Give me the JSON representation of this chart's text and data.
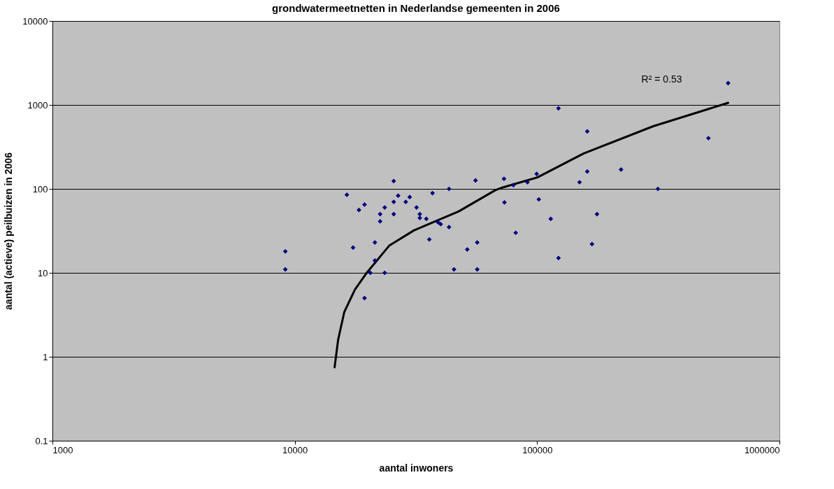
{
  "chart_data": {
    "type": "scatter",
    "title": "grondwatermeetnetten in Nederlandse gemeenten in 2006",
    "xlabel": "aantal inwoners",
    "ylabel": "aantal (actieve) peilbuizen in 2006",
    "log": "xy",
    "grid": "y",
    "legend": false,
    "xlim": [
      1000,
      1000000
    ],
    "xticks": [
      1000,
      10000,
      100000,
      1000000
    ],
    "ylim": [
      0.1,
      10000
    ],
    "yticks": [
      0.1,
      1,
      10,
      100,
      1000,
      10000
    ],
    "series": [
      {
        "color": "#000080",
        "marker": "diamond",
        "x": [
          9140,
          9140,
          16400,
          17400,
          18400,
          19400,
          19400,
          20500,
          21400,
          21400,
          22500,
          22500,
          23500,
          23500,
          25600,
          25600,
          25600,
          26700,
          28700,
          29800,
          31800,
          32800,
          32800,
          34900,
          35900,
          37000,
          39000,
          40000,
          43300,
          43300,
          45400,
          51500,
          55700,
          56600,
          56600,
          73000,
          79800,
          73300,
          91200,
          99600,
          101600,
          113800,
          81600,
          122500,
          122500,
          149600,
          161000,
          161000,
          168400,
          176600,
          222000,
          315000,
          509000,
          614000
        ],
        "values": [
          18,
          11,
          85,
          20,
          56,
          65,
          5,
          10,
          14,
          23,
          41,
          50,
          60,
          10,
          124,
          70,
          50,
          83,
          70,
          80,
          60,
          50,
          45,
          44,
          25,
          89,
          40,
          38,
          100,
          35,
          11,
          19,
          126,
          23,
          11,
          132,
          111,
          69,
          120,
          151,
          75,
          44,
          30,
          912,
          15,
          120,
          484,
          161,
          22,
          50,
          170,
          100,
          402,
          1820
        ]
      },
      {
        "type": "line",
        "color": "#000000",
        "line_style": "solid",
        "x": [
          14600,
          15100,
          16000,
          17700,
          19700,
          24500,
          31000,
          47500,
          67400,
          72100,
          100200,
          155600,
          301000,
          614000
        ],
        "values": [
          0.75,
          1.6,
          3.4,
          6.3,
          9.8,
          21,
          32,
          54,
          97,
          104,
          137,
          264,
          557,
          1059
        ]
      }
    ],
    "annotations": [
      "R² = 0.53"
    ]
  }
}
